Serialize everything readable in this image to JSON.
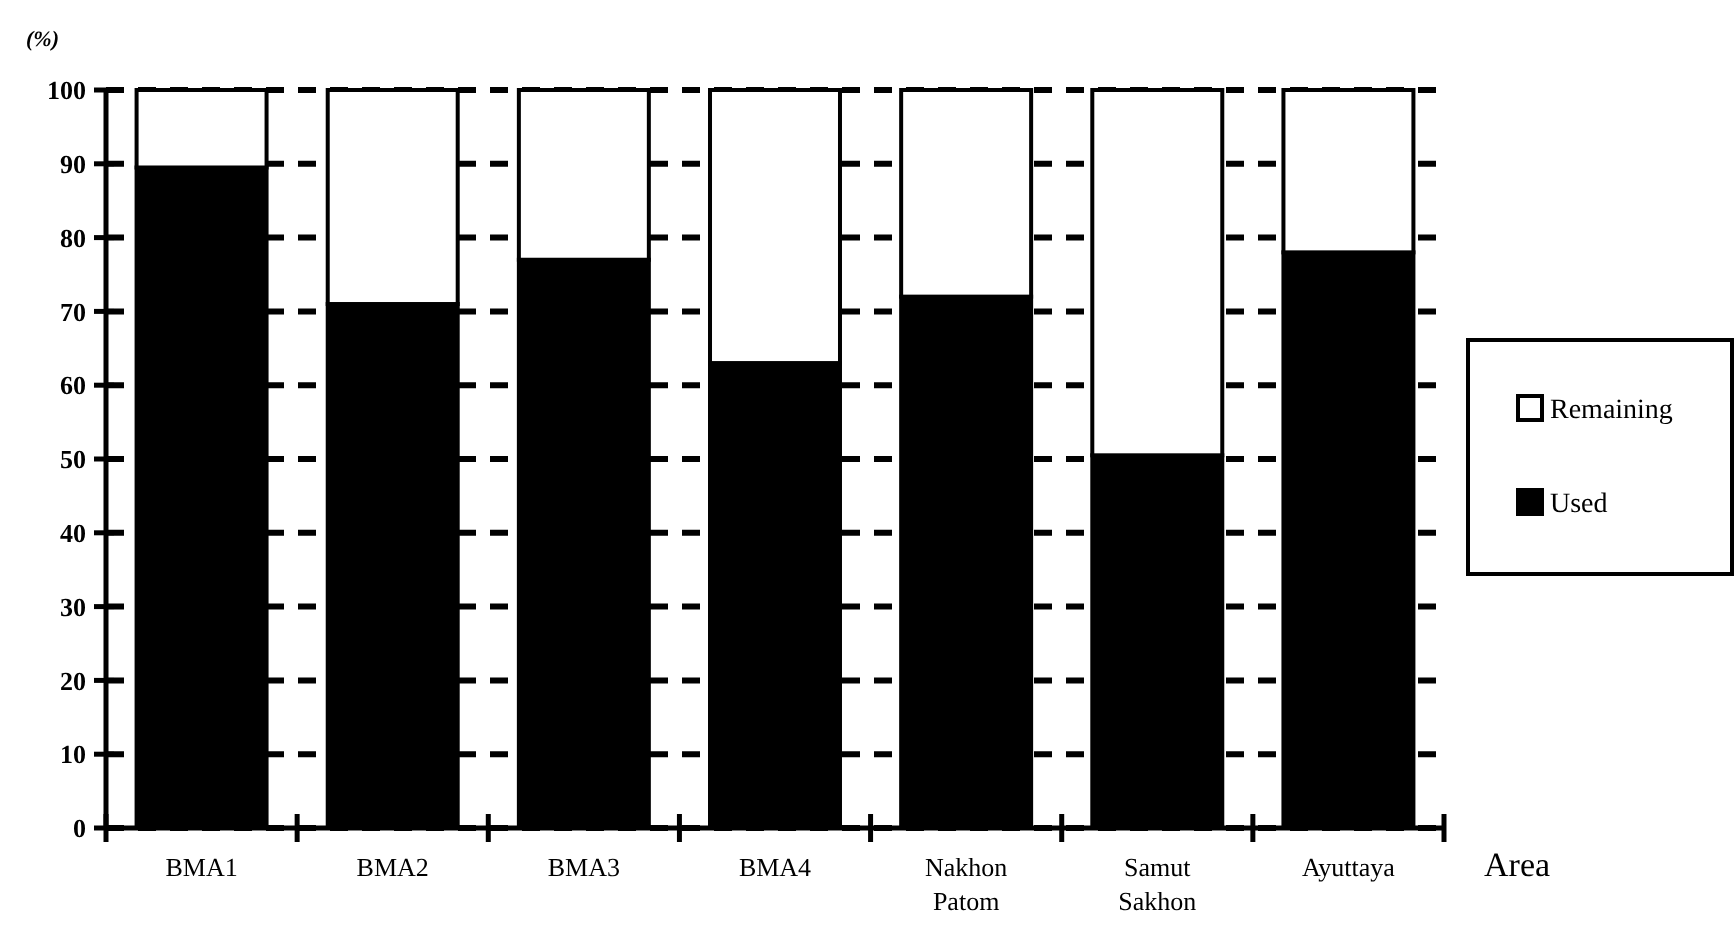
{
  "chart_data": {
    "type": "bar",
    "ylabel": "(%)",
    "xlabel": "Area",
    "categories": [
      "BMA1",
      "BMA2",
      "BMA3",
      "BMA4",
      "Nakhon Patom",
      "Samut Sakhon",
      "Ayuttaya"
    ],
    "stacked": true,
    "series": [
      {
        "name": "Used",
        "color": "#000000",
        "values": [
          89.5,
          71,
          77,
          63,
          72,
          50.5,
          78
        ]
      },
      {
        "name": "Remaining",
        "color": "#ffffff",
        "values": [
          10.5,
          29,
          23,
          37,
          28,
          49.5,
          22
        ]
      }
    ],
    "ylim": [
      0,
      100
    ],
    "yticks": [
      0,
      10,
      20,
      30,
      40,
      50,
      60,
      70,
      80,
      90,
      100
    ],
    "grid": "y",
    "legend": "right"
  }
}
